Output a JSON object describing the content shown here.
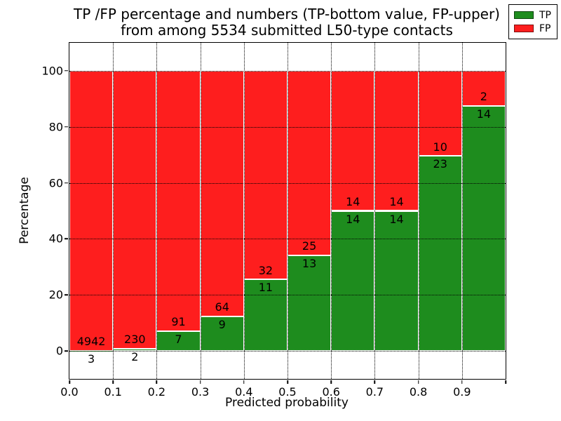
{
  "figure": {
    "title_line1": "TP /FP percentage and numbers (TP-bottom value, FP-upper)",
    "title_line2": "from among 5534 submitted L50-type contacts"
  },
  "chart_data": {
    "type": "bar",
    "stacked": true,
    "title": "TP /FP percentage and numbers (TP-bottom value, FP-upper)\nfrom among 5534 submitted L50-type contacts",
    "xlabel": "Predicted probability",
    "ylabel": "Percentage",
    "total_contacts": 5534,
    "categories": [
      "0.0-0.1",
      "0.1-0.2",
      "0.2-0.3",
      "0.3-0.4",
      "0.4-0.5",
      "0.5-0.6",
      "0.6-0.7",
      "0.7-0.8",
      "0.8-0.9",
      "0.9-1.0"
    ],
    "x_tick_labels": [
      "0.0",
      "0.1",
      "0.2",
      "0.3",
      "0.4",
      "0.5",
      "0.6",
      "0.7",
      "0.8",
      "0.9"
    ],
    "y_ticks": [
      0,
      20,
      40,
      60,
      80,
      100
    ],
    "xlim": [
      0.0,
      1.0
    ],
    "ylim": [
      -10,
      110
    ],
    "grid": true,
    "series": [
      {
        "name": "TP",
        "color": "#1e8c1e",
        "values": [
          3,
          2,
          7,
          9,
          11,
          13,
          14,
          14,
          23,
          14
        ]
      },
      {
        "name": "FP",
        "color": "#fe1e1e",
        "values": [
          4942,
          230,
          91,
          64,
          32,
          25,
          14,
          14,
          10,
          2
        ]
      }
    ],
    "tp_percent": [
      0.0607,
      0.862,
      7.143,
      12.329,
      25.581,
      34.211,
      50.0,
      50.0,
      69.697,
      87.5
    ],
    "legend": {
      "position": "upper right",
      "entries": [
        "TP",
        "FP"
      ]
    }
  }
}
